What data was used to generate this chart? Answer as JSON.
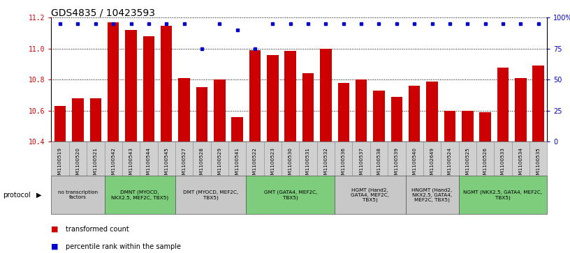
{
  "title": "GDS4835 / 10423593",
  "samples": [
    "GSM1100519",
    "GSM1100520",
    "GSM1100521",
    "GSM1100542",
    "GSM1100543",
    "GSM1100544",
    "GSM1100545",
    "GSM1100527",
    "GSM1100528",
    "GSM1100529",
    "GSM1100541",
    "GSM1100522",
    "GSM1100523",
    "GSM1100530",
    "GSM1100531",
    "GSM1100532",
    "GSM1100536",
    "GSM1100537",
    "GSM1100538",
    "GSM1100539",
    "GSM1100540",
    "GSM1102649",
    "GSM1100524",
    "GSM1100525",
    "GSM1100526",
    "GSM1100533",
    "GSM1100534",
    "GSM1100535"
  ],
  "bar_values": [
    10.63,
    10.68,
    10.68,
    11.17,
    11.12,
    11.08,
    11.15,
    10.81,
    10.75,
    10.8,
    10.56,
    10.99,
    10.96,
    10.985,
    10.84,
    11.0,
    10.78,
    10.8,
    10.73,
    10.69,
    10.76,
    10.79,
    10.6,
    10.6,
    10.59,
    10.88,
    10.81,
    10.89
  ],
  "percentile_values": [
    95,
    95,
    95,
    95,
    95,
    95,
    95,
    95,
    75,
    95,
    90,
    75,
    95,
    95,
    95,
    95,
    95,
    95,
    95,
    95,
    95,
    95,
    95,
    95,
    95,
    95,
    95,
    95
  ],
  "ylim_left": [
    10.4,
    11.2
  ],
  "ybase": 10.4,
  "ylim_right": [
    0,
    100
  ],
  "yticks_left": [
    10.4,
    10.6,
    10.8,
    11.0,
    11.2
  ],
  "yticks_right": [
    0,
    25,
    50,
    75,
    100
  ],
  "ytick_labels_right": [
    "0",
    "25",
    "50",
    "75",
    "100%"
  ],
  "bar_color": "#cc0000",
  "dot_color": "#0000cc",
  "title_fontsize": 10,
  "tick_fontsize": 6,
  "protocol_groups": [
    {
      "label": "no transcription\nfactors",
      "start": 0,
      "end": 3,
      "color": "#c8c8c8"
    },
    {
      "label": "DMNT (MYOCD,\nNKX2.5, MEF2C, TBX5)",
      "start": 3,
      "end": 7,
      "color": "#7dcd7d"
    },
    {
      "label": "DMT (MYOCD, MEF2C,\nTBX5)",
      "start": 7,
      "end": 11,
      "color": "#c8c8c8"
    },
    {
      "label": "GMT (GATA4, MEF2C,\nTBX5)",
      "start": 11,
      "end": 16,
      "color": "#7dcd7d"
    },
    {
      "label": "HGMT (Hand2,\nGATA4, MEF2C,\nTBX5)",
      "start": 16,
      "end": 20,
      "color": "#c8c8c8"
    },
    {
      "label": "HNGMT (Hand2,\nNKX2.5, GATA4,\nMEF2C, TBX5)",
      "start": 20,
      "end": 23,
      "color": "#c8c8c8"
    },
    {
      "label": "NGMT (NKX2.5, GATA4, MEF2C,\nTBX5)",
      "start": 23,
      "end": 28,
      "color": "#7dcd7d"
    }
  ]
}
